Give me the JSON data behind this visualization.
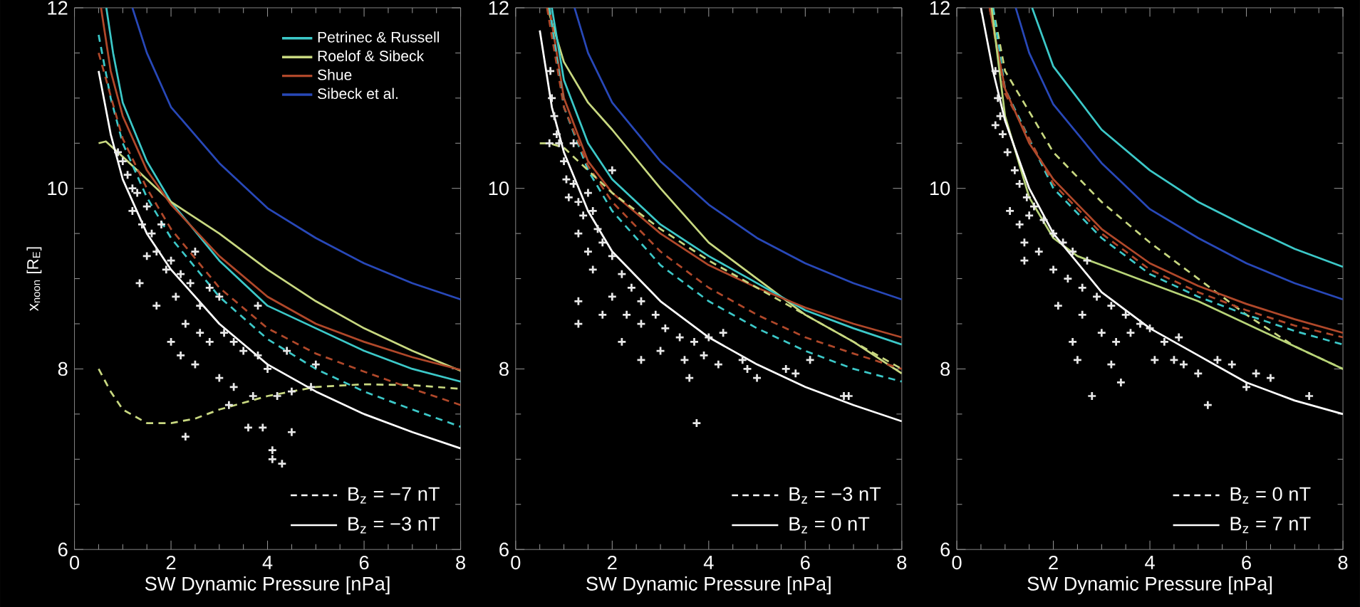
{
  "chart_data": [
    {
      "type": "line",
      "xlabel": "SW Dynamic Pressure [nPa]",
      "ylabel": "x$_{noon}$ [R$_{E}$]",
      "xlim": [
        0,
        8
      ],
      "ylim": [
        6,
        12
      ],
      "xticks": [
        0,
        2,
        4,
        6,
        8
      ],
      "yticks": [
        6,
        8,
        10,
        12
      ],
      "legend": "top right",
      "annotations": [
        "B$_{z}$ = −7 nT",
        "B$_{z}$ = −3 nT"
      ],
      "series": [
        {
          "type": "scatter",
          "marker": "cross",
          "color": "#e8e8e8",
          "x": [
            0.9,
            1,
            1.1,
            1.2,
            1.3,
            1.5,
            1.2,
            1.4,
            1.6,
            1.8,
            1.5,
            1.7,
            1.9,
            2.0,
            2.2,
            2.4,
            2.1,
            2.5,
            2.6,
            2.8,
            3.0,
            2.3,
            2.6,
            2.8,
            3.1,
            3.3,
            3.5,
            3.8,
            4.0,
            2.2,
            2.5,
            3.0,
            3.3,
            3.7,
            4.2,
            4.5,
            4.4,
            4.9,
            5.0,
            3.6,
            3.9,
            4.5,
            2.3,
            4.1,
            4.1,
            4.3,
            3.2,
            3.8,
            2.0,
            1.7,
            1.35
          ],
          "values": [
            10.4,
            10.3,
            10.15,
            10.0,
            9.95,
            9.8,
            9.75,
            9.6,
            9.5,
            9.6,
            9.25,
            9.3,
            9.1,
            9.2,
            9.05,
            8.95,
            8.8,
            9.3,
            8.7,
            8.9,
            8.8,
            8.5,
            8.4,
            8.3,
            8.4,
            8.3,
            8.2,
            8.15,
            8.0,
            8.15,
            8.05,
            7.9,
            7.8,
            7.7,
            7.7,
            7.75,
            8.2,
            7.8,
            8.05,
            7.35,
            7.35,
            7.3,
            7.25,
            7.1,
            7.0,
            6.95,
            7.6,
            8.7,
            8.3,
            8.7,
            8.95
          ]
        },
        {
          "name": "Petrinec & Russell",
          "line_style": "solid",
          "color": "#3cc8c8",
          "x": [
            0.66,
            0.8,
            1,
            1.5,
            2,
            3,
            4,
            5,
            6,
            7,
            8
          ],
          "values": [
            12,
            11.5,
            10.95,
            10.3,
            9.85,
            9.2,
            8.7,
            8.45,
            8.2,
            8.0,
            7.86
          ]
        },
        {
          "name": "Roelof & Sibeck",
          "line_style": "solid",
          "color": "#c8d880",
          "x": [
            0.5,
            0.65,
            1,
            2,
            3,
            4,
            5,
            6,
            7,
            8
          ],
          "values": [
            10.5,
            10.52,
            10.35,
            9.85,
            9.5,
            9.1,
            8.75,
            8.45,
            8.2,
            7.98
          ]
        },
        {
          "name": "Shue",
          "line_style": "solid",
          "color": "#b0482a",
          "x": [
            0.55,
            0.75,
            1,
            1.5,
            2,
            3,
            4,
            5,
            6,
            7,
            8
          ],
          "values": [
            12,
            11.3,
            10.8,
            10.2,
            9.82,
            9.25,
            8.8,
            8.5,
            8.3,
            8.13,
            7.99
          ]
        },
        {
          "name": "Sibeck et al.",
          "line_style": "solid",
          "color": "#2848b8",
          "x": [
            1.2,
            1.5,
            2,
            3,
            4,
            5,
            6,
            7,
            8
          ],
          "values": [
            12,
            11.5,
            10.9,
            10.28,
            9.78,
            9.45,
            9.17,
            8.95,
            8.77
          ]
        },
        {
          "line_style": "dashed",
          "color": "#3cc8c8",
          "x": [
            0.5,
            0.75,
            1,
            1.5,
            2,
            3,
            4,
            5,
            6,
            7,
            8
          ],
          "values": [
            11.7,
            11.0,
            10.5,
            9.9,
            9.45,
            8.8,
            8.33,
            8.0,
            7.75,
            7.55,
            7.36
          ]
        },
        {
          "line_style": "dashed",
          "color": "#c8d880",
          "x": [
            0.5,
            0.75,
            1,
            1.5,
            2,
            2.5,
            3,
            4,
            5,
            6,
            7,
            8
          ],
          "values": [
            8.0,
            7.75,
            7.55,
            7.4,
            7.4,
            7.45,
            7.55,
            7.7,
            7.8,
            7.83,
            7.82,
            7.78
          ]
        },
        {
          "line_style": "dashed",
          "color": "#b0482a",
          "x": [
            0.5,
            1,
            1.5,
            2,
            3,
            4,
            5,
            6,
            7,
            8
          ],
          "values": [
            11.5,
            10.55,
            10.0,
            9.55,
            8.9,
            8.45,
            8.17,
            7.97,
            7.78,
            7.6
          ]
        },
        {
          "line_style": "solid",
          "color": "#ffffff",
          "x": [
            0.5,
            0.75,
            1,
            1.5,
            2,
            3,
            4,
            5,
            6,
            7,
            8
          ],
          "values": [
            11.3,
            10.6,
            10.1,
            9.5,
            9.1,
            8.5,
            8.05,
            7.75,
            7.5,
            7.3,
            7.12
          ]
        }
      ]
    },
    {
      "type": "line",
      "xlabel": "SW Dynamic Pressure [nPa]",
      "xlim": [
        0,
        8
      ],
      "ylim": [
        6,
        12
      ],
      "xticks": [
        0,
        2,
        4,
        6,
        8
      ],
      "yticks": [
        6,
        8,
        10,
        12
      ],
      "annotations": [
        "B$_{z}$ = −3 nT",
        "B$_{z}$ = 0 nT"
      ],
      "series": [
        {
          "type": "scatter",
          "marker": "cross",
          "color": "#e8e8e8",
          "x": [
            0.72,
            0.75,
            0.8,
            0.85,
            0.9,
            0.7,
            1.0,
            1.05,
            1.1,
            1.2,
            1.3,
            1.4,
            1.5,
            1.6,
            1.7,
            1.8,
            1.3,
            1.5,
            1.6,
            2.0,
            2.2,
            2.4,
            2.6,
            2.0,
            2.3,
            2.6,
            2.9,
            3.1,
            3.4,
            3.7,
            4.0,
            4.3,
            3.0,
            3.5,
            3.9,
            4.2,
            4.7,
            4.8,
            5.0,
            3.6,
            5.6,
            5.8,
            6.1,
            6.8,
            6.9,
            3.75,
            1.3,
            1.3,
            1.8,
            2.2,
            2.6,
            2.0,
            1.2
          ],
          "values": [
            11.3,
            11.0,
            10.8,
            10.6,
            10.5,
            10.5,
            10.3,
            10.1,
            9.9,
            10.05,
            9.85,
            9.7,
            9.95,
            9.75,
            9.55,
            9.4,
            9.5,
            9.3,
            9.1,
            9.25,
            9.05,
            8.9,
            8.75,
            8.8,
            8.6,
            8.5,
            8.6,
            8.45,
            8.35,
            8.3,
            8.35,
            8.4,
            8.2,
            8.1,
            8.15,
            8.05,
            8.1,
            8.0,
            7.9,
            7.9,
            8.0,
            7.95,
            8.1,
            7.7,
            7.7,
            7.4,
            8.75,
            8.5,
            8.6,
            8.3,
            8.1,
            10.2,
            10.5
          ]
        },
        {
          "line_style": "solid",
          "color": "#2848b8",
          "x": [
            1.22,
            1.5,
            2,
            3,
            4,
            5,
            6,
            7,
            8
          ],
          "values": [
            12,
            11.5,
            10.95,
            10.3,
            9.82,
            9.45,
            9.17,
            8.95,
            8.77
          ]
        },
        {
          "line_style": "solid",
          "color": "#c8d880",
          "x": [
            0.66,
            1,
            1.5,
            2,
            3,
            4,
            5,
            6,
            7,
            8
          ],
          "values": [
            12,
            11.4,
            10.95,
            10.65,
            10.0,
            9.4,
            9.0,
            8.6,
            8.3,
            7.95
          ]
        },
        {
          "line_style": "solid",
          "color": "#3cc8c8",
          "x": [
            0.75,
            1,
            1.5,
            2,
            3,
            4,
            5,
            6,
            7,
            8
          ],
          "values": [
            12,
            11.2,
            10.5,
            10.1,
            9.6,
            9.25,
            8.95,
            8.65,
            8.45,
            8.27
          ]
        },
        {
          "line_style": "solid",
          "color": "#b0482a",
          "x": [
            0.7,
            1,
            1.5,
            2,
            3,
            4,
            5,
            6,
            7,
            8
          ],
          "values": [
            12,
            11.0,
            10.3,
            9.95,
            9.5,
            9.15,
            8.9,
            8.68,
            8.5,
            8.35
          ]
        },
        {
          "line_style": "dashed",
          "color": "#3cc8c8",
          "x": [
            0.7,
            1,
            1.5,
            2,
            3,
            4,
            5,
            6,
            7,
            8
          ],
          "values": [
            12,
            10.9,
            10.2,
            9.75,
            9.15,
            8.75,
            8.45,
            8.2,
            8.0,
            7.86
          ]
        },
        {
          "line_style": "dashed",
          "color": "#b0482a",
          "x": [
            0.65,
            1,
            1.5,
            2,
            3,
            4,
            5,
            6,
            7,
            8
          ],
          "values": [
            12,
            10.9,
            10.25,
            9.85,
            9.3,
            8.9,
            8.6,
            8.35,
            8.17,
            8.0
          ]
        },
        {
          "line_style": "dashed",
          "color": "#c8d880",
          "x": [
            0.5,
            0.7,
            1,
            1.5,
            2,
            3,
            4,
            5,
            6,
            7,
            8
          ],
          "values": [
            10.5,
            10.5,
            10.45,
            10.2,
            9.95,
            9.55,
            9.2,
            8.9,
            8.6,
            8.3,
            8.0
          ]
        },
        {
          "line_style": "solid",
          "color": "#ffffff",
          "x": [
            0.5,
            0.75,
            1,
            1.5,
            2,
            3,
            4,
            5,
            6,
            7,
            8
          ],
          "values": [
            11.75,
            10.9,
            10.4,
            9.75,
            9.3,
            8.75,
            8.35,
            8.05,
            7.8,
            7.6,
            7.42
          ]
        }
      ]
    },
    {
      "type": "line",
      "xlabel": "SW Dynamic Pressure [nPa]",
      "xlim": [
        0,
        8
      ],
      "ylim": [
        6,
        12
      ],
      "xticks": [
        0,
        2,
        4,
        6,
        8
      ],
      "yticks": [
        6,
        8,
        10,
        12
      ],
      "annotations": [
        "B$_{z}$ = 0 nT",
        "B$_{z}$ = 7 nT"
      ],
      "series": [
        {
          "type": "scatter",
          "marker": "cross",
          "color": "#e8e8e8",
          "x": [
            0.8,
            0.85,
            0.9,
            0.95,
            0.8,
            1.05,
            1.2,
            1.3,
            1.45,
            1.5,
            1.6,
            1.8,
            2.0,
            2.2,
            2.4,
            2.7,
            1.1,
            1.3,
            1.4,
            1.7,
            2.0,
            2.3,
            2.6,
            2.9,
            3.2,
            3.5,
            3.8,
            1.4,
            2.1,
            2.6,
            3.0,
            3.3,
            3.6,
            4.0,
            4.3,
            4.6,
            4.1,
            4.5,
            4.7,
            5.0,
            5.4,
            5.7,
            6.0,
            6.2,
            6.5,
            7.3,
            5.2,
            2.8,
            3.4,
            2.5,
            2.4,
            3.2
          ],
          "values": [
            11.3,
            11.0,
            10.8,
            10.6,
            10.7,
            10.4,
            10.2,
            10.05,
            9.9,
            9.7,
            9.8,
            9.65,
            9.5,
            9.4,
            9.3,
            9.2,
            9.75,
            9.6,
            9.4,
            9.3,
            9.1,
            9.0,
            8.9,
            8.8,
            8.7,
            8.6,
            8.5,
            9.2,
            8.7,
            8.6,
            8.4,
            8.3,
            8.4,
            8.45,
            8.3,
            8.35,
            8.1,
            8.1,
            8.05,
            7.95,
            8.1,
            8.05,
            7.8,
            7.95,
            7.9,
            7.7,
            7.6,
            7.7,
            7.85,
            8.1,
            8.3,
            8.05
          ]
        },
        {
          "line_style": "solid",
          "color": "#3cc8c8",
          "x": [
            1.56,
            2,
            3,
            4,
            5,
            6,
            7,
            8
          ],
          "values": [
            12,
            11.35,
            10.65,
            10.2,
            9.85,
            9.58,
            9.33,
            9.13
          ]
        },
        {
          "line_style": "solid",
          "color": "#2848b8",
          "x": [
            1.22,
            1.5,
            2,
            3,
            4,
            5,
            6,
            7,
            8
          ],
          "values": [
            12,
            11.5,
            10.93,
            10.28,
            9.77,
            9.45,
            9.17,
            8.95,
            8.77
          ]
        },
        {
          "line_style": "dashed",
          "color": "#c8d880",
          "x": [
            0.75,
            1,
            2,
            3,
            4,
            5,
            6,
            7,
            8
          ],
          "values": [
            12,
            11.3,
            10.4,
            9.85,
            9.4,
            9.0,
            8.6,
            8.25,
            8.0
          ]
        },
        {
          "line_style": "dashed",
          "color": "#3cc8c8",
          "x": [
            0.75,
            1,
            2,
            3,
            4,
            5,
            6,
            7,
            8
          ],
          "values": [
            12,
            11.1,
            10.0,
            9.45,
            9.05,
            8.8,
            8.6,
            8.42,
            8.27
          ]
        },
        {
          "line_style": "dashed",
          "color": "#b0482a",
          "x": [
            0.68,
            1,
            2,
            3,
            4,
            5,
            6,
            7,
            8
          ],
          "values": [
            12,
            11.05,
            10.05,
            9.5,
            9.1,
            8.85,
            8.65,
            8.48,
            8.35
          ]
        },
        {
          "line_style": "solid",
          "color": "#b0482a",
          "x": [
            0.68,
            1,
            1.5,
            2,
            3,
            4,
            5,
            6,
            7,
            8
          ],
          "values": [
            12,
            11.1,
            10.5,
            10.1,
            9.55,
            9.17,
            8.92,
            8.72,
            8.55,
            8.4
          ]
        },
        {
          "line_style": "solid",
          "color": "#b8d478",
          "x": [
            0.72,
            1,
            1.5,
            2,
            2.5,
            3,
            4,
            5,
            6,
            7,
            8
          ],
          "values": [
            12,
            10.8,
            9.9,
            9.45,
            9.25,
            9.15,
            8.95,
            8.75,
            8.5,
            8.25,
            8.0
          ]
        },
        {
          "line_style": "solid",
          "color": "#ffffff",
          "x": [
            0.5,
            0.75,
            1,
            1.5,
            2,
            3,
            4,
            5,
            6,
            7,
            8
          ],
          "values": [
            12,
            11.3,
            10.75,
            10.0,
            9.5,
            8.85,
            8.45,
            8.15,
            7.85,
            7.65,
            7.5
          ]
        }
      ]
    }
  ]
}
